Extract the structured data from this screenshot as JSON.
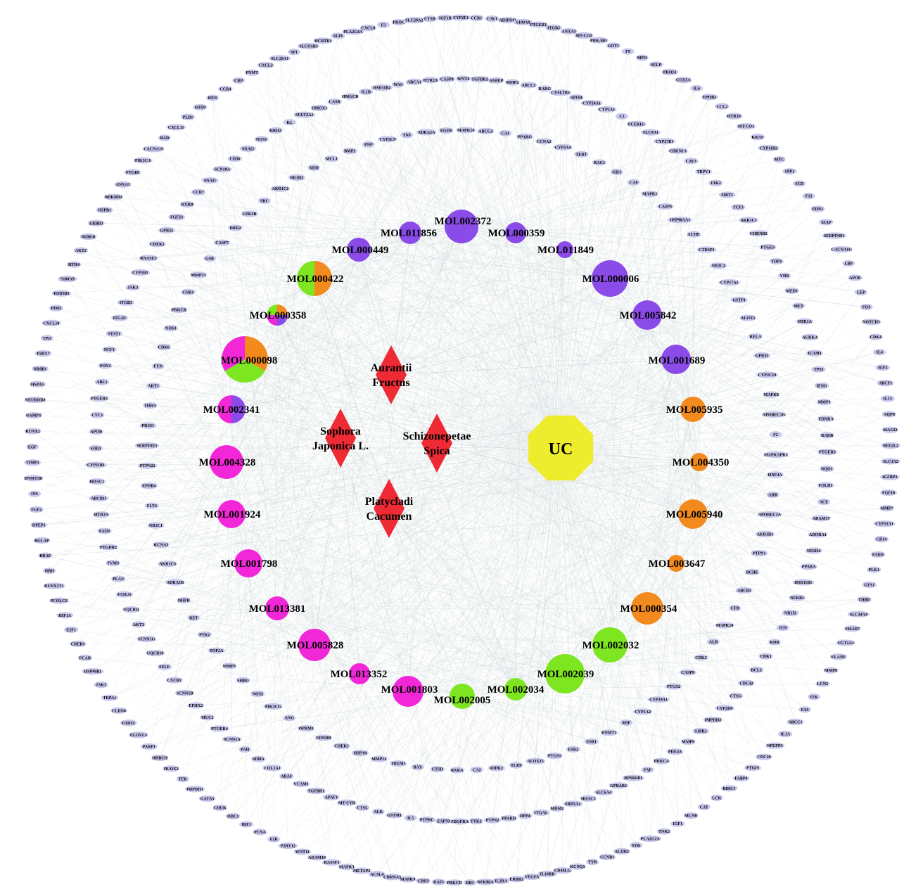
{
  "colors": {
    "gene": "#c8c8ee",
    "edge": "#c9d3d6",
    "herb": "#ee2a35",
    "uc": "#eded2e",
    "purple": "#8a4be8",
    "orange": "#f38a1e",
    "green": "#7ee620",
    "magenta": "#f227d8"
  },
  "uc": {
    "label": "UC"
  },
  "herbs": [
    {
      "id": "h1",
      "label": [
        "Aurantii",
        "Fructus"
      ]
    },
    {
      "id": "h2",
      "label": [
        "Sophora",
        "Japonica L."
      ]
    },
    {
      "id": "h3",
      "label": [
        "Schizonepetae",
        "Spica"
      ]
    },
    {
      "id": "h4",
      "label": [
        "Platycladi",
        "Cacumen"
      ]
    }
  ],
  "molecules": [
    {
      "id": "MOL002372",
      "herbs": [
        "purple"
      ]
    },
    {
      "id": "MOL011856",
      "herbs": [
        "purple"
      ]
    },
    {
      "id": "MOL000359",
      "herbs": [
        "purple"
      ]
    },
    {
      "id": "MOL000449",
      "herbs": [
        "purple"
      ]
    },
    {
      "id": "MOL011849",
      "herbs": [
        "purple"
      ]
    },
    {
      "id": "MOL000422",
      "herbs": [
        "orange",
        "green"
      ]
    },
    {
      "id": "MOL000006",
      "herbs": [
        "purple"
      ]
    },
    {
      "id": "MOL000358",
      "herbs": [
        "orange",
        "purple",
        "magenta",
        "green"
      ]
    },
    {
      "id": "MOL005842",
      "herbs": [
        "purple"
      ]
    },
    {
      "id": "MOL000098",
      "herbs": [
        "orange",
        "green",
        "magenta"
      ]
    },
    {
      "id": "MOL001689",
      "herbs": [
        "purple"
      ]
    },
    {
      "id": "MOL002341",
      "herbs": [
        "purple",
        "magenta"
      ]
    },
    {
      "id": "MOL005935",
      "herbs": [
        "orange"
      ]
    },
    {
      "id": "MOL004328",
      "herbs": [
        "magenta"
      ]
    },
    {
      "id": "MOL004350",
      "herbs": [
        "orange"
      ]
    },
    {
      "id": "MOL001924",
      "herbs": [
        "magenta"
      ]
    },
    {
      "id": "MOL005940",
      "herbs": [
        "orange"
      ]
    },
    {
      "id": "MOL001798",
      "herbs": [
        "magenta"
      ]
    },
    {
      "id": "MOL003647",
      "herbs": [
        "orange"
      ]
    },
    {
      "id": "MOL013381",
      "herbs": [
        "magenta"
      ]
    },
    {
      "id": "MOL000354",
      "herbs": [
        "orange"
      ]
    },
    {
      "id": "MOL005828",
      "herbs": [
        "magenta"
      ]
    },
    {
      "id": "MOL002032",
      "herbs": [
        "green"
      ]
    },
    {
      "id": "MOL013352",
      "herbs": [
        "magenta"
      ]
    },
    {
      "id": "MOL002039",
      "herbs": [
        "green"
      ]
    },
    {
      "id": "MOL001803",
      "herbs": [
        "magenta"
      ]
    },
    {
      "id": "MOL002034",
      "herbs": [
        "green"
      ]
    },
    {
      "id": "MOL002005",
      "herbs": [
        "green"
      ]
    }
  ],
  "genes_inner": [
    "TNF",
    "ADRA2A",
    "EGFR",
    "MAPK14",
    "ABCG2",
    "CA1",
    "PPARG",
    "CCNA2",
    "CYP3A4",
    "TERT",
    "RAC1",
    "GBA",
    "CA9",
    "MAPK1",
    "CASP3",
    "HSP90AA1",
    "ACHE",
    "CTDSP1",
    "NR3C2",
    "CYP17A1",
    "GSTP1",
    "ALOX5",
    "RELA",
    "GPR35",
    "CYP2C19",
    "MAPK8",
    "APOBEC3G",
    "F2",
    "MAPKAPK2",
    "HNF4A",
    "AHR",
    "APOBEC3A",
    "AKR1B1",
    "PTPN1",
    "BCHE",
    "ABCB1",
    "CFB",
    "MAPK10",
    "ALB",
    "CDK2",
    "CASP9",
    "PTGS2",
    "CYP19A1",
    "CYP1A2",
    "MIF",
    "DNMT1",
    "ESR1",
    "ESR2",
    "PTGS1",
    "ALOX15",
    "TLR9",
    "RIPK2",
    "CA2",
    "RXRA",
    "CTSD",
    "BAX",
    "TREM1",
    "MMP12",
    "HSPA8",
    "CHEK1",
    "EDNRB",
    "OPRM1",
    "ANG",
    "PIK3CG",
    "NOS2",
    "SHBG",
    "MMP3",
    "TOP2A",
    "PTK2",
    "RET",
    "DHFR",
    "ADRA1B",
    "AKR1C3",
    "KCNA3",
    "NR3C1",
    "FLT4",
    "EPHB4",
    "PTPN22",
    "SERPINE1",
    "PRSS1",
    "THRA",
    "AKT1",
    "FYN",
    "CDK6",
    "NOS3",
    "PRKCB",
    "CNR1",
    "MMP13",
    "GSR",
    "CASP7",
    "DRD2",
    "GSK3B",
    "SRC",
    "AKR1C2",
    "NR1H2",
    "XDH",
    "MCL1",
    "BMP2",
    "PNP",
    "CYP2C9"
  ],
  "genes_middle": [
    "MMP2",
    "ABCC2",
    "RARG",
    "CYSLTR1",
    "APOH",
    "CYP24A1",
    "CYP1A1",
    "C3",
    "FCER1G",
    "SLC9A1",
    "CYP27B1",
    "CDKN1A",
    "CAV3",
    "TRPV1",
    "JAK2",
    "SIRT1",
    "TCF3",
    "AKR1C1",
    "CHRNB2",
    "PTGES",
    "TOP1",
    "VDR",
    "MED1",
    "MET",
    "HTR1A",
    "AURKA",
    "ICAM1",
    "TP53",
    "IFNG",
    "MMP1",
    "EDNRA",
    "RARB",
    "PTGER2",
    "NQO1",
    "FOLH1",
    "ACE",
    "ADAM17",
    "ADORA1",
    "NR1H4",
    "PPARA",
    "HSD11B1",
    "NFKB1",
    "NR1I2",
    "JUN",
    "KDR",
    "CDK1",
    "BCL2",
    "CDC42",
    "CTSG",
    "CYP2D6",
    "IMPDH2",
    "S1PR1",
    "MMP9",
    "PDE4A",
    "PRKCA",
    "FAP",
    "RPS6KB1",
    "GPBAR1",
    "SLC6A4",
    "HDAC2",
    "SRD5A2",
    "MDM2",
    "ITGAL",
    "DPP4",
    "PPARD",
    "PTPN2",
    "TYK2",
    "PDGFRA",
    "ZAP70",
    "PTPRC",
    "IL5",
    "GSTM1",
    "ALK",
    "CTSL",
    "MT-CYB",
    "APAF1",
    "TGFBR1",
    "VCAM1",
    "ARAF",
    "COL1A1",
    "SDHA",
    "PAH",
    "SCNN1A",
    "PTGER4",
    "MUC2",
    "EPHX2",
    "SCNN1B",
    "CXCR2",
    "SELE",
    "UQCR10",
    "SCNN1G",
    "AKT3",
    "UQCRQ",
    "FASLG",
    "PLAU",
    "TVMS",
    "PTGDR2",
    "FASN",
    "HTR3A",
    "ABCB11",
    "HDAC1",
    "CYP11B1",
    "SOD1",
    "APOB",
    "CYC1",
    "PTGER3",
    "ABL1",
    "PON1",
    "NCF1",
    "STAT1",
    "ITGAV",
    "ITGB3",
    "JAK3",
    "CYP1B1",
    "RNASE3",
    "CHEK2",
    "GPR55",
    "FGF23",
    "RXRB",
    "CCR7",
    "SNAI1",
    "SCN10A",
    "CD36",
    "SNAI2",
    "NOS1",
    "HRH2",
    "KL",
    "SULT2A1",
    "HMOX1",
    "CASR",
    "HMGCR",
    "IL1B",
    "HSD11B2",
    "WAS",
    "ABCA1",
    "HTR2A",
    "CASP8",
    "WNT4",
    "TGFBR2",
    "ANPEP"
  ],
  "genes_outer": [
    "CCR1",
    "CAV1",
    "ADIPOQ",
    "S100A8",
    "PTGER1",
    "ITGB2",
    "ANXA5",
    "MT-CO2",
    "PRKAB1",
    "GOT1",
    "F9",
    "MPO",
    "SELP",
    "PROS1",
    "COX5A",
    "IL6",
    "EPHB2",
    "CCL2",
    "HTR3E",
    "MT-CO1",
    "KRAS",
    "CYP11B2",
    "MYC",
    "SPP1",
    "SCD",
    "F12",
    "EDN1",
    "XIAP",
    "SERPINH1",
    "CACNA1G",
    "LBP",
    "APOE",
    "LEP",
    "FOS",
    "NOTCH1",
    "CDK4",
    "IL4",
    "IGF2",
    "ABCF1",
    "IL13",
    "AQP8",
    "MAGI2",
    "NFE2L2",
    "SLC3A2",
    "IGFBP3",
    "FGF10",
    "MMP7",
    "CYP51A1",
    "CD14",
    "FADD",
    "PLK1",
    "GJA1",
    "THBD",
    "SLC44A4",
    "SMAD7",
    "UGT1A1",
    "ELANE",
    "MMP8",
    "LCN2",
    "ITK",
    "FAS",
    "ABCC1",
    "IL1A",
    "NPEPPS",
    "CDC20",
    "PTGIS",
    "FABP4",
    "BIRC5",
    "LCK",
    "CAT",
    "MLNR",
    "IGF1",
    "TNK2",
    "PLA2G2A",
    "SYK",
    "ALDH2",
    "CCNB1",
    "TYR",
    "KCNQ1",
    "CD40LG",
    "IL10RB",
    "VEGFA",
    "ERBB2",
    "IL2RA",
    "NFKBIA",
    "RB1",
    "PRKCD",
    "RAF1",
    "CDH3",
    "MAPK9",
    "CHRNA5",
    "ACSL4",
    "METAP2",
    "MAPK3",
    "RASSF1",
    "ADAM10",
    "WNT11",
    "P2RY12",
    "F2R",
    "PCNA",
    "IRF1",
    "ODC1",
    "CHUK",
    "GATA3",
    "IMPDH1",
    "TEK",
    "DUOX2",
    "HRBCH",
    "PARP1",
    "ELOVL3",
    "FADS2",
    "CLDN4",
    "TRPA1",
    "JAK3",
    "HSP90B1",
    "FCAR",
    "CREB1",
    "E2F1",
    "HIF1A",
    "PCOLCE",
    "RUNX1T1",
    "DBH",
    "BRAF",
    "BGLAP",
    "DPEP1",
    "FGF2",
    "INS",
    "DNMT3B",
    "TIMP1",
    "EGF",
    "RUNX2",
    "NAMPT",
    "NEUROD2",
    "HSPA5",
    "NR0B1",
    "P2RX7",
    "TPO",
    "CXCL10",
    "PIM3",
    "HSD3B1",
    "S100A9",
    "HTR4",
    "AKT2",
    "IKBKB",
    "ERBB3",
    "HSPB1",
    "BDKRB2",
    "ANXA1",
    "PTGIR",
    "PIK3CA",
    "CACNA1S",
    "BAD",
    "CXCL11",
    "PLB1",
    "SOX9",
    "REN",
    "CCR4",
    "CRP",
    "PNMT",
    "CXCL2",
    "SLC29A1",
    "SP1",
    "SLCO1B3",
    "HCRTR1",
    "SLPI",
    "PLA2G4A",
    "CXCL8",
    "F3",
    "PROC",
    "SLC29A2",
    "CTSB",
    "IGF1R",
    "CYP2E1"
  ]
}
